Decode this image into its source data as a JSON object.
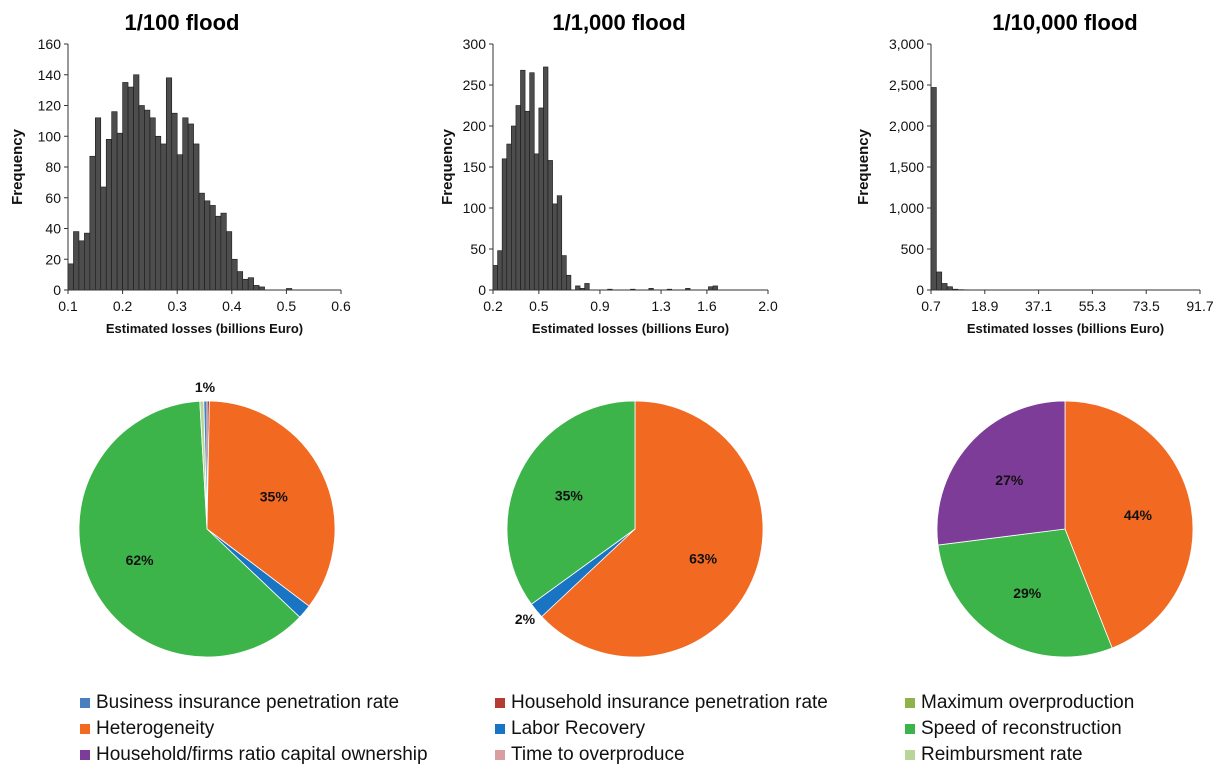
{
  "chart_data": [
    {
      "type": "bar",
      "title": "1/100 flood",
      "xlabel": "Estimated losses (billions Euro)",
      "ylabel": "Frequency",
      "ylim": [
        0,
        160
      ],
      "xlim": [
        0.1,
        0.6
      ],
      "y_ticks": [
        "0",
        "20",
        "40",
        "60",
        "80",
        "100",
        "120",
        "140",
        "160"
      ],
      "x_ticks": [
        "0.1",
        "0.2",
        "0.3",
        "0.4",
        "0.5",
        "0.6"
      ],
      "x_tick_values": [
        0.1,
        0.2,
        0.3,
        0.4,
        0.5,
        0.6
      ],
      "bin_width": 0.01,
      "bin_start": [
        0.1,
        0.11,
        0.12,
        0.13,
        0.14,
        0.15,
        0.16,
        0.17,
        0.18,
        0.19,
        0.2,
        0.21,
        0.22,
        0.23,
        0.24,
        0.25,
        0.26,
        0.27,
        0.28,
        0.29,
        0.3,
        0.31,
        0.32,
        0.33,
        0.34,
        0.35,
        0.36,
        0.37,
        0.38,
        0.39,
        0.4,
        0.41,
        0.42,
        0.43,
        0.44,
        0.45,
        0.46,
        0.47,
        0.48,
        0.49,
        0.5,
        0.51,
        0.52,
        0.53,
        0.54,
        0.55,
        0.56,
        0.57,
        0.58,
        0.59
      ],
      "values": [
        17,
        38,
        32,
        37,
        87,
        112,
        67,
        98,
        116,
        102,
        135,
        132,
        140,
        120,
        117,
        112,
        100,
        95,
        138,
        115,
        88,
        112,
        108,
        95,
        63,
        58,
        55,
        48,
        50,
        38,
        20,
        12,
        7,
        8,
        3,
        2,
        0,
        0,
        0,
        0,
        1,
        0,
        0,
        0,
        0,
        0,
        0,
        0,
        0,
        0
      ]
    },
    {
      "type": "bar",
      "title": "1/1,000 flood",
      "xlabel": "Estimated losses (billions Euro)",
      "ylabel": "Frequency",
      "ylim": [
        0,
        300
      ],
      "xlim": [
        0.2,
        2.0
      ],
      "y_ticks": [
        "0",
        "50",
        "100",
        "150",
        "200",
        "250",
        "300"
      ],
      "x_ticks": [
        "0.2",
        "0.5",
        "0.9",
        "1.3",
        "1.6",
        "2.0"
      ],
      "x_tick_values": [
        0.2,
        0.5,
        0.9,
        1.3,
        1.6,
        2.0
      ],
      "bin_width": 0.03,
      "bin_start": [
        0.2,
        0.23,
        0.26,
        0.29,
        0.32,
        0.35,
        0.38,
        0.41,
        0.44,
        0.47,
        0.5,
        0.53,
        0.56,
        0.59,
        0.62,
        0.65,
        0.68,
        0.71,
        0.74,
        0.77,
        0.8,
        0.83,
        0.86,
        0.89,
        0.92,
        0.95,
        0.98,
        1.01,
        1.04,
        1.07,
        1.1,
        1.13,
        1.16,
        1.19,
        1.22,
        1.25,
        1.28,
        1.31,
        1.34,
        1.37,
        1.4,
        1.43,
        1.46,
        1.49,
        1.52,
        1.55,
        1.58,
        1.61,
        1.64,
        1.67,
        1.7,
        1.73,
        1.76,
        1.79,
        1.82,
        1.85,
        1.88,
        1.91,
        1.94,
        1.97
      ],
      "values": [
        30,
        48,
        160,
        178,
        200,
        225,
        268,
        218,
        265,
        166,
        222,
        272,
        158,
        105,
        115,
        42,
        18,
        0,
        5,
        2,
        8,
        0,
        0,
        0,
        0,
        1,
        0,
        0,
        0,
        0,
        1,
        0,
        0,
        0,
        2,
        0,
        0,
        0,
        1,
        0,
        0,
        0,
        2,
        0,
        0,
        0,
        0,
        4,
        5,
        0,
        0,
        0,
        0,
        0,
        0,
        0,
        0,
        0,
        0,
        0
      ]
    },
    {
      "type": "bar",
      "title": "1/10,000 flood",
      "xlabel": "Estimated losses (billions Euro)",
      "ylabel": "Frequency",
      "ylim": [
        0,
        3000
      ],
      "xlim": [
        0.7,
        91.7
      ],
      "y_ticks": [
        "0",
        "500",
        "1,000",
        "1,500",
        "2,000",
        "2,500",
        "3,000"
      ],
      "x_ticks": [
        "0.7",
        "18.9",
        "37.1",
        "55.3",
        "73.5",
        "91.7"
      ],
      "x_tick_values": [
        0.7,
        18.9,
        37.1,
        55.3,
        73.5,
        91.7
      ],
      "bin_width": 1.82,
      "bin_start": [
        0.7,
        2.52,
        4.34,
        6.16,
        7.98,
        9.8,
        11.62,
        13.44,
        15.26,
        17.08,
        18.9,
        20.72
      ],
      "values": [
        2470,
        220,
        80,
        40,
        10,
        5,
        3,
        2,
        2,
        1,
        1,
        1
      ]
    },
    {
      "type": "pie",
      "slices": [
        {
          "name": "Household insurance penetration rate",
          "value": 0.3
        },
        {
          "name": "Heterogeneity",
          "value": 35,
          "label": "35%"
        },
        {
          "name": "Labor Recovery",
          "value": 1.8
        },
        {
          "name": "Speed of reconstruction",
          "value": 62,
          "label": "62%"
        },
        {
          "name": "Reimbursment rate",
          "value": 0.5,
          "label": "1%"
        },
        {
          "name": "Business insurance penetration rate",
          "value": 0.4
        }
      ]
    },
    {
      "type": "pie",
      "slices": [
        {
          "name": "Heterogeneity",
          "value": 63,
          "label": "63%"
        },
        {
          "name": "Labor Recovery",
          "value": 2,
          "label": "2%"
        },
        {
          "name": "Speed of reconstruction",
          "value": 35,
          "label": "35%"
        }
      ]
    },
    {
      "type": "pie",
      "slices": [
        {
          "name": "Heterogeneity",
          "value": 44,
          "label": "44%"
        },
        {
          "name": "Speed of reconstruction",
          "value": 29,
          "label": "29%"
        },
        {
          "name": "Household/firms ratio capital ownership",
          "value": 27,
          "label": "27%"
        }
      ]
    }
  ],
  "legend": {
    "rows": [
      [
        {
          "label": "Business insurance penetration rate",
          "color": "#4a7fbf"
        },
        {
          "label": "Household insurance penetration rate",
          "color": "#b43c30"
        },
        {
          "label": "Maximum overproduction",
          "color": "#8db34a"
        }
      ],
      [
        {
          "label": "Heterogeneity",
          "color": "#f26a22"
        },
        {
          "label": "Labor Recovery",
          "color": "#1a74c4"
        },
        {
          "label": "Speed of reconstruction",
          "color": "#3db44a"
        }
      ],
      [
        {
          "label": "Household/firms ratio capital ownership",
          "color": "#7d3c98"
        },
        {
          "label": "Time to overproduce",
          "color": "#d99ea0"
        },
        {
          "label": "Reimbursment rate",
          "color": "#b8d59a"
        }
      ]
    ]
  }
}
